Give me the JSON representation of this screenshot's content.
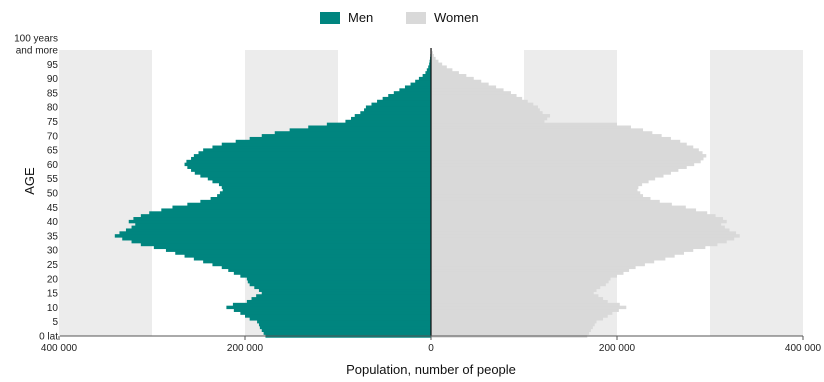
{
  "chart_data": {
    "type": "bar",
    "orientation": "horizontal-population-pyramid",
    "title": "",
    "xlabel": "Population, number of people",
    "ylabel": "AGE",
    "xlim": [
      -400000,
      400000
    ],
    "ylim": [
      0,
      100
    ],
    "x_tick_labels": [
      "400 000",
      "200 000",
      "0",
      "200 000",
      "400 000"
    ],
    "x_tick_values": [
      -400000,
      -200000,
      0,
      200000,
      400000
    ],
    "y_tick_values": [
      0,
      5,
      10,
      15,
      20,
      25,
      30,
      35,
      40,
      45,
      50,
      55,
      60,
      65,
      70,
      75,
      80,
      85,
      90,
      95,
      100
    ],
    "y_tick_labels": [
      "0 lat",
      "5",
      "10",
      "15",
      "20",
      "25",
      "30",
      "35",
      "40",
      "45",
      "50",
      "55",
      "60",
      "65",
      "70",
      "75",
      "80",
      "85",
      "90",
      "95",
      "100 years|and more"
    ],
    "background_bands": [
      [
        -400000,
        -300000
      ],
      [
        -200000,
        -100000
      ],
      [
        100000,
        200000
      ],
      [
        300000,
        400000
      ]
    ],
    "legend_position": "top-center",
    "colors": {
      "men": "#00857f",
      "women": "#d9d9d9",
      "band": "#ececec"
    },
    "series": [
      {
        "name": "Men",
        "side": "left",
        "ages": [
          0,
          1,
          2,
          3,
          4,
          5,
          6,
          7,
          8,
          9,
          10,
          11,
          12,
          13,
          14,
          15,
          16,
          17,
          18,
          19,
          20,
          21,
          22,
          23,
          24,
          25,
          26,
          27,
          28,
          29,
          30,
          31,
          32,
          33,
          34,
          35,
          36,
          37,
          38,
          39,
          40,
          41,
          42,
          43,
          44,
          45,
          46,
          47,
          48,
          49,
          50,
          51,
          52,
          53,
          54,
          55,
          56,
          57,
          58,
          59,
          60,
          61,
          62,
          63,
          64,
          65,
          66,
          67,
          68,
          69,
          70,
          71,
          72,
          73,
          74,
          75,
          76,
          77,
          78,
          79,
          80,
          81,
          82,
          83,
          84,
          85,
          86,
          87,
          88,
          89,
          90,
          91,
          92,
          93,
          94,
          95,
          96,
          97,
          98,
          99,
          100
        ],
        "values": [
          178000,
          180000,
          182000,
          184000,
          185000,
          187000,
          195000,
          200000,
          205000,
          212000,
          220000,
          213000,
          198000,
          193000,
          188000,
          182000,
          185000,
          190000,
          195000,
          197000,
          198000,
          205000,
          212000,
          218000,
          225000,
          235000,
          245000,
          255000,
          265000,
          275000,
          285000,
          298000,
          312000,
          322000,
          332000,
          340000,
          335000,
          328000,
          322000,
          318000,
          325000,
          320000,
          312000,
          303000,
          290000,
          278000,
          262000,
          248000,
          237000,
          230000,
          227000,
          224000,
          225000,
          228000,
          235000,
          240000,
          248000,
          254000,
          258000,
          262000,
          265000,
          263000,
          258000,
          255000,
          250000,
          245000,
          235000,
          225000,
          210000,
          195000,
          182000,
          168000,
          152000,
          132000,
          112000,
          92000,
          86000,
          82000,
          76000,
          72000,
          70000,
          64000,
          58000,
          52000,
          46000,
          40000,
          34000,
          28000,
          22000,
          17000,
          13000,
          9000,
          6000,
          4500,
          3000,
          2000,
          1500,
          1000,
          700,
          400,
          300
        ]
      },
      {
        "name": "Women",
        "side": "right",
        "ages": [
          0,
          1,
          2,
          3,
          4,
          5,
          6,
          7,
          8,
          9,
          10,
          11,
          12,
          13,
          14,
          15,
          16,
          17,
          18,
          19,
          20,
          21,
          22,
          23,
          24,
          25,
          26,
          27,
          28,
          29,
          30,
          31,
          32,
          33,
          34,
          35,
          36,
          37,
          38,
          39,
          40,
          41,
          42,
          43,
          44,
          45,
          46,
          47,
          48,
          49,
          50,
          51,
          52,
          53,
          54,
          55,
          56,
          57,
          58,
          59,
          60,
          61,
          62,
          63,
          64,
          65,
          66,
          67,
          68,
          69,
          70,
          71,
          72,
          73,
          74,
          75,
          76,
          77,
          78,
          79,
          80,
          81,
          82,
          83,
          84,
          85,
          86,
          87,
          88,
          89,
          90,
          91,
          92,
          93,
          94,
          95,
          96,
          97,
          98,
          99,
          100
        ],
        "values": [
          168000,
          170000,
          172000,
          174000,
          176000,
          178000,
          185000,
          190000,
          195000,
          202000,
          210000,
          203000,
          190000,
          185000,
          180000,
          175000,
          178000,
          182000,
          188000,
          191000,
          193000,
          200000,
          207000,
          213000,
          220000,
          230000,
          240000,
          252000,
          262000,
          272000,
          282000,
          295000,
          308000,
          318000,
          326000,
          332000,
          328000,
          321000,
          316000,
          312000,
          318000,
          314000,
          306000,
          297000,
          285000,
          274000,
          259000,
          246000,
          236000,
          228000,
          225000,
          222000,
          223000,
          227000,
          234000,
          241000,
          250000,
          258000,
          266000,
          275000,
          283000,
          290000,
          293000,
          296000,
          292000,
          288000,
          282000,
          275000,
          268000,
          258000,
          248000,
          238000,
          228000,
          215000,
          200000,
          122000,
          125000,
          128000,
          120000,
          117000,
          115000,
          110000,
          104000,
          98000,
          92000,
          86000,
          78000,
          70000,
          62000,
          54000,
          46000,
          38000,
          30000,
          23000,
          17000,
          12000,
          8000,
          5000,
          3000,
          2000,
          1000
        ]
      }
    ]
  }
}
